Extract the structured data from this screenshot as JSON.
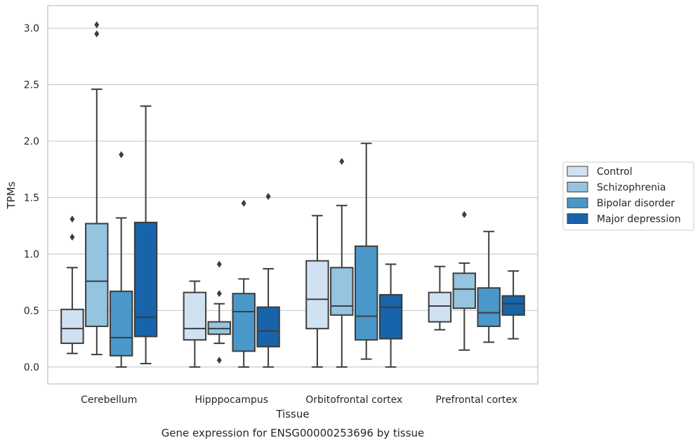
{
  "caption": "Gene expression for ENSG00000253696 by tissue",
  "chart_data": {
    "type": "box",
    "xlabel": "Tissue",
    "ylabel": "TPMs",
    "ylim": [
      -0.15,
      3.2
    ],
    "yticks": [
      "0.0",
      "0.5",
      "1.0",
      "1.5",
      "2.0",
      "2.5",
      "3.0"
    ],
    "grid": "horizontal",
    "legend_position": "right",
    "categories": [
      "Cerebellum",
      "Hipppocampus",
      "Orbitofrontal cortex",
      "Prefrontal cortex"
    ],
    "series": [
      {
        "name": "Control",
        "color": "#d0e1f2",
        "boxes": [
          {
            "whislo": 0.12,
            "q1": 0.21,
            "med": 0.34,
            "q3": 0.51,
            "whishi": 0.88,
            "fliers": [
              1.15,
              1.31
            ]
          },
          {
            "whislo": 0.0,
            "q1": 0.24,
            "med": 0.34,
            "q3": 0.66,
            "whishi": 0.76,
            "fliers": []
          },
          {
            "whislo": 0.0,
            "q1": 0.34,
            "med": 0.6,
            "q3": 0.94,
            "whishi": 1.34,
            "fliers": []
          },
          {
            "whislo": 0.33,
            "q1": 0.4,
            "med": 0.54,
            "q3": 0.66,
            "whishi": 0.89,
            "fliers": []
          }
        ]
      },
      {
        "name": "Schizophrenia",
        "color": "#94c4df",
        "boxes": [
          {
            "whislo": 0.11,
            "q1": 0.36,
            "med": 0.76,
            "q3": 1.27,
            "whishi": 2.46,
            "fliers": [
              2.95,
              3.03
            ]
          },
          {
            "whislo": 0.21,
            "q1": 0.29,
            "med": 0.34,
            "q3": 0.4,
            "whishi": 0.56,
            "fliers": [
              0.06,
              0.65,
              0.91
            ]
          },
          {
            "whislo": 0.0,
            "q1": 0.46,
            "med": 0.54,
            "q3": 0.88,
            "whishi": 1.43,
            "fliers": [
              1.82
            ]
          },
          {
            "whislo": 0.15,
            "q1": 0.52,
            "med": 0.69,
            "q3": 0.83,
            "whishi": 0.92,
            "fliers": [
              1.35
            ]
          }
        ]
      },
      {
        "name": "Bipolar disorder",
        "color": "#4a98c9",
        "boxes": [
          {
            "whislo": 0.0,
            "q1": 0.1,
            "med": 0.26,
            "q3": 0.67,
            "whishi": 1.32,
            "fliers": [
              1.88
            ]
          },
          {
            "whislo": 0.0,
            "q1": 0.14,
            "med": 0.49,
            "q3": 0.65,
            "whishi": 0.78,
            "fliers": [
              1.45
            ]
          },
          {
            "whislo": 0.07,
            "q1": 0.24,
            "med": 0.45,
            "q3": 1.07,
            "whishi": 1.98,
            "fliers": []
          },
          {
            "whislo": 0.22,
            "q1": 0.36,
            "med": 0.48,
            "q3": 0.7,
            "whishi": 1.2,
            "fliers": []
          }
        ]
      },
      {
        "name": "Major depression",
        "color": "#1764ab",
        "boxes": [
          {
            "whislo": 0.03,
            "q1": 0.27,
            "med": 0.44,
            "q3": 1.28,
            "whishi": 2.31,
            "fliers": []
          },
          {
            "whislo": 0.0,
            "q1": 0.18,
            "med": 0.32,
            "q3": 0.53,
            "whishi": 0.87,
            "fliers": [
              1.51
            ]
          },
          {
            "whislo": 0.0,
            "q1": 0.25,
            "med": 0.53,
            "q3": 0.64,
            "whishi": 0.91,
            "fliers": []
          },
          {
            "whislo": 0.25,
            "q1": 0.46,
            "med": 0.56,
            "q3": 0.63,
            "whishi": 0.85,
            "fliers": []
          }
        ]
      }
    ]
  }
}
